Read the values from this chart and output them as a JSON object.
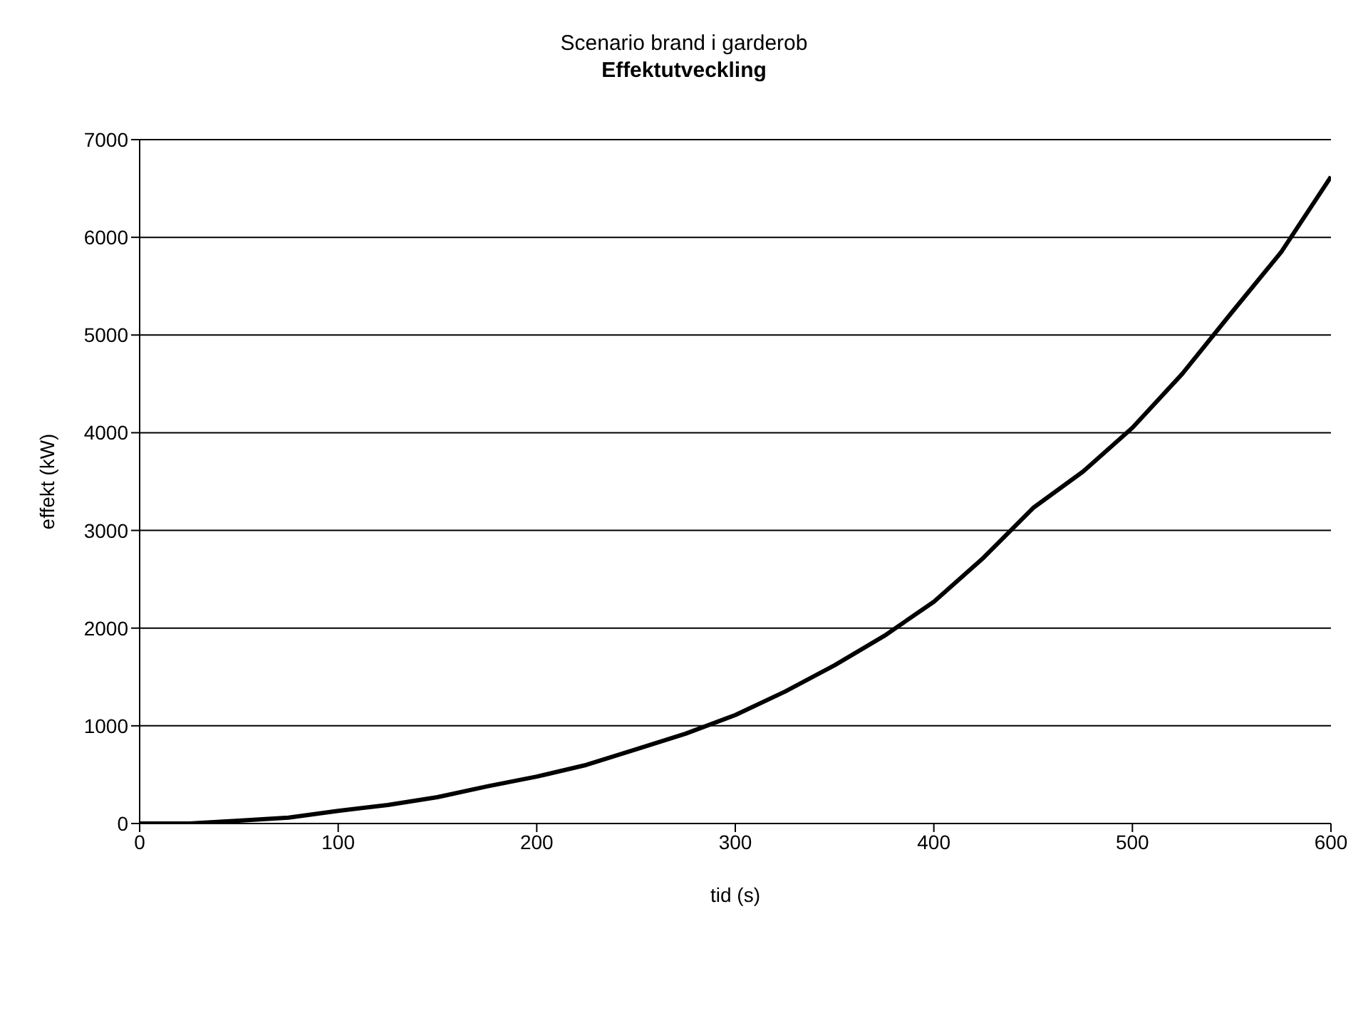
{
  "chart_data": {
    "type": "line",
    "title": "Scenario brand i garderob",
    "subtitle": "Effektutveckling",
    "xlabel": "tid (s)",
    "ylabel": "effekt (kW)",
    "x": [
      0,
      25,
      50,
      75,
      100,
      125,
      150,
      175,
      200,
      225,
      250,
      275,
      300,
      325,
      350,
      375,
      400,
      425,
      450,
      475,
      500,
      525,
      550,
      575,
      600
    ],
    "series": [
      {
        "color": "#000000",
        "values": [
          0,
          0,
          30,
          60,
          130,
          190,
          270,
          380,
          480,
          600,
          760,
          920,
          1110,
          1350,
          1620,
          1920,
          2270,
          2720,
          3230,
          3600,
          4050,
          4600,
          5230,
          5850,
          6620
        ]
      }
    ],
    "xlim": [
      0,
      600
    ],
    "xticks": [
      0,
      100,
      200,
      300,
      400,
      500,
      600
    ],
    "ylim": [
      0,
      7000
    ],
    "yticks": [
      0,
      1000,
      2000,
      3000,
      4000,
      5000,
      6000,
      7000
    ],
    "grid": "y",
    "marker": "none",
    "line_style": "solid"
  }
}
